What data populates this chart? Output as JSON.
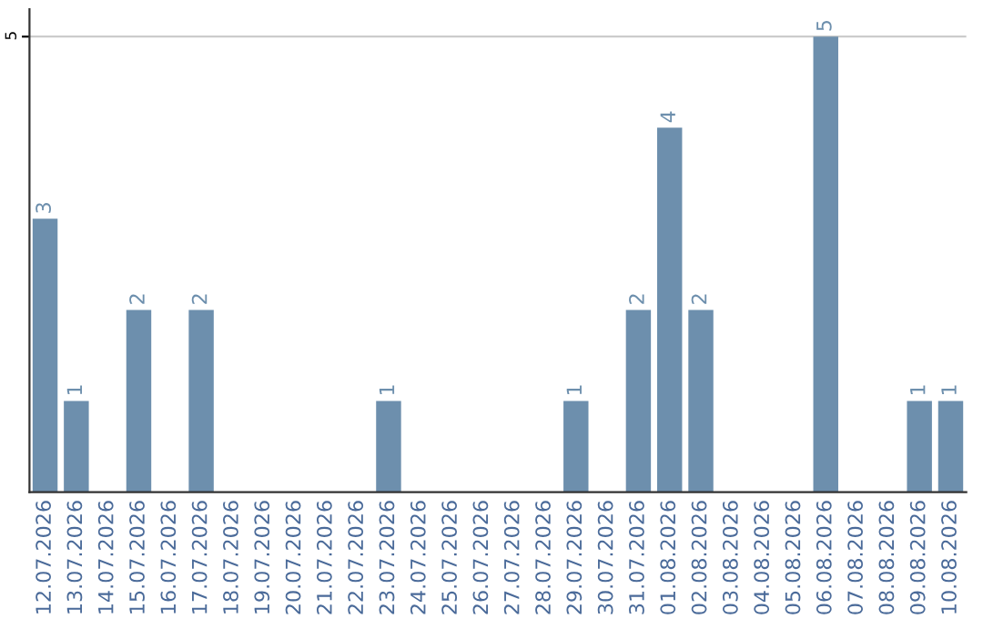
{
  "chart_data": {
    "type": "bar",
    "categories": [
      "12.07.2026",
      "13.07.2026",
      "14.07.2026",
      "15.07.2026",
      "16.07.2026",
      "17.07.2026",
      "18.07.2026",
      "19.07.2026",
      "20.07.2026",
      "21.07.2026",
      "22.07.2026",
      "23.07.2026",
      "24.07.2026",
      "25.07.2026",
      "26.07.2026",
      "27.07.2026",
      "28.07.2026",
      "29.07.2026",
      "30.07.2026",
      "31.07.2026",
      "01.08.2026",
      "02.08.2026",
      "03.08.2026",
      "04.08.2026",
      "05.08.2026",
      "06.08.2026",
      "07.08.2026",
      "08.08.2026",
      "09.08.2026",
      "10.08.2026"
    ],
    "values": [
      3,
      1,
      0,
      2,
      0,
      2,
      0,
      0,
      0,
      0,
      0,
      1,
      0,
      0,
      0,
      0,
      0,
      1,
      0,
      2,
      4,
      2,
      0,
      0,
      0,
      5,
      0,
      0,
      1,
      1
    ],
    "value_labels": [
      "3",
      "1",
      null,
      "2",
      null,
      "2",
      null,
      null,
      null,
      null,
      null,
      "1",
      null,
      null,
      null,
      null,
      null,
      "1",
      null,
      "2",
      "4",
      "2",
      null,
      null,
      null,
      "5",
      null,
      null,
      "1",
      "1"
    ],
    "color": "#6d8fad",
    "ylim": [
      0,
      5.3
    ],
    "yticks": [
      5
    ],
    "grid": "y"
  }
}
